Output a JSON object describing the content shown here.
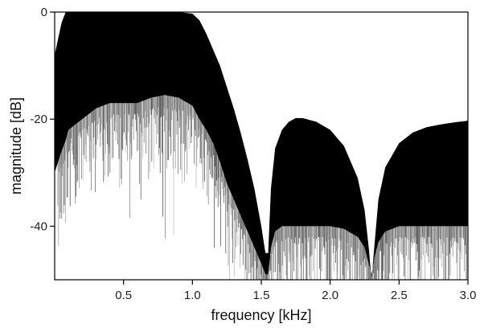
{
  "chart_data": {
    "type": "area",
    "title": "",
    "xlabel": "frequency [kHz]",
    "ylabel": "magnitude [dB]",
    "xlim": [
      0.0,
      3.0
    ],
    "ylim": [
      -50,
      0
    ],
    "grid": false,
    "legend": "none",
    "x_ticks": [
      0.5,
      1.0,
      1.5,
      2.0,
      2.5,
      3.0
    ],
    "x_tick_labels": [
      "0.5",
      "1.0",
      "1.5",
      "2.0",
      "2.5",
      "3.0"
    ],
    "y_ticks": [
      0,
      -20,
      -40
    ],
    "y_tick_labels": [
      "0",
      "-20",
      "-40"
    ],
    "series": [
      {
        "x": [
          0.0,
          0.05,
          0.08,
          0.1,
          0.15,
          0.2,
          0.3,
          0.4,
          0.5,
          0.6,
          0.7,
          0.8,
          0.9,
          1.0,
          1.05,
          1.1,
          1.15,
          1.2,
          1.25,
          1.3,
          1.35,
          1.4,
          1.45,
          1.5,
          1.53,
          1.55,
          1.57,
          1.6,
          1.65,
          1.7,
          1.75,
          1.8,
          1.9,
          2.0,
          2.1,
          2.2,
          2.25,
          2.28,
          2.3,
          2.32,
          2.35,
          2.4,
          2.5,
          2.6,
          2.7,
          2.8,
          2.9,
          3.0
        ],
        "envelope": [
          -8.0,
          -2.0,
          0.0,
          0.0,
          0.0,
          0.0,
          0.0,
          0.0,
          0.0,
          0.0,
          0.0,
          0.0,
          0.0,
          -0.3,
          -1.5,
          -4.0,
          -7.0,
          -10.0,
          -14.0,
          -18.0,
          -22.5,
          -27.5,
          -33.0,
          -40.0,
          -45.0,
          -45.0,
          -33.0,
          -25.5,
          -22.0,
          -20.5,
          -19.8,
          -19.8,
          -20.5,
          -22.0,
          -25.0,
          -31.0,
          -37.0,
          -44.0,
          -50.0,
          -44.0,
          -35.0,
          -29.0,
          -24.5,
          -22.5,
          -21.5,
          -21.0,
          -20.6,
          -20.3
        ],
        "floor": [
          -30.0,
          -26.0,
          -24.0,
          -22.0,
          -21.0,
          -20.0,
          -18.0,
          -17.0,
          -17.0,
          -17.0,
          -16.0,
          -15.5,
          -16.0,
          -17.5,
          -20.0,
          -22.0,
          -24.5,
          -28.0,
          -32.0,
          -35.0,
          -38.0,
          -41.0,
          -44.0,
          -47.0,
          -49.0,
          -49.0,
          -44.0,
          -41.0,
          -40.0,
          -40.0,
          -40.0,
          -40.0,
          -40.0,
          -40.0,
          -40.5,
          -42.0,
          -44.0,
          -47.0,
          -49.0,
          -46.0,
          -43.0,
          -41.0,
          -40.0,
          -40.0,
          -40.0,
          -40.0,
          -40.0,
          -40.0
        ]
      }
    ]
  }
}
